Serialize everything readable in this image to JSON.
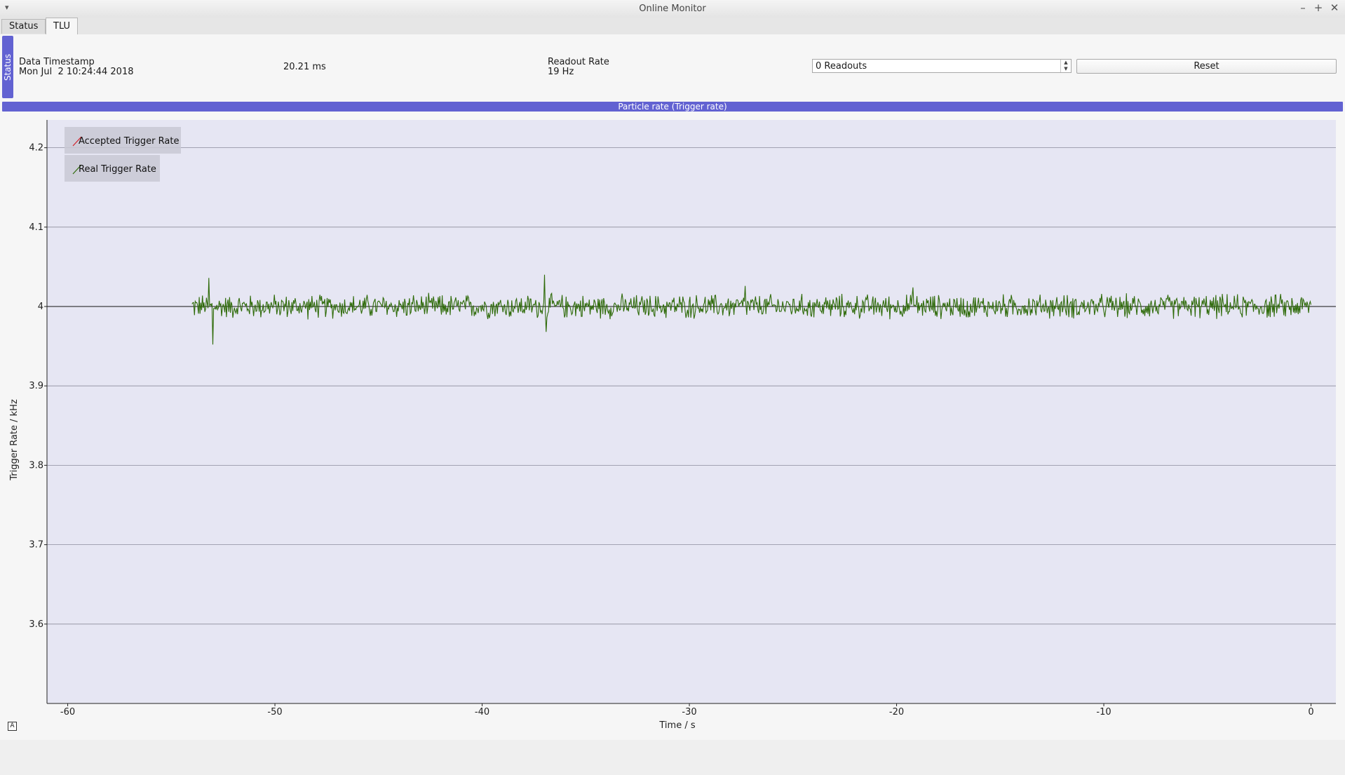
{
  "window": {
    "title": "Online Monitor",
    "menu_icon": "chevron-down-icon",
    "controls": [
      "minimize-icon",
      "maximize-icon",
      "close-icon"
    ],
    "minimize_glyph": "–",
    "maximize_glyph": "+",
    "close_glyph": "✕"
  },
  "tabs": [
    {
      "label": "Status",
      "active": false
    },
    {
      "label": "TLU",
      "active": true
    }
  ],
  "status_dock": {
    "tab_label": "Status",
    "timestamp_label": "Data Timestamp",
    "timestamp_value": "Mon Jul  2 10:24:44 2018",
    "latency": "20.21 ms",
    "readout_rate_label": "Readout Rate",
    "readout_rate_value": "19 Hz",
    "readouts_value": "0 Readouts",
    "reset_label": "Reset"
  },
  "plot_dock": {
    "title": "Particle rate (Trigger rate)"
  },
  "colors": {
    "accent": "#6262d2",
    "plot_bg": "#e6e6f3",
    "real_trigger_line": "#2f6b0a",
    "accepted_trigger_line": "#d2202a"
  },
  "chart_data": {
    "type": "line",
    "xlabel": "Time / s",
    "ylabel": "Trigger Rate / kHz",
    "xlim": [
      -61,
      1.2
    ],
    "ylim": [
      3.5,
      4.235
    ],
    "xticks": [
      -60,
      -50,
      -40,
      -30,
      -20,
      -10,
      0
    ],
    "yticks": [
      3.6,
      3.7,
      3.8,
      3.9,
      4,
      4.1,
      4.2
    ],
    "grid": "horizontal",
    "legend_placement": "top-left",
    "reference_line_y": 4,
    "series": [
      {
        "name": "Accepted Trigger Rate",
        "color": "#d2202a",
        "x": [],
        "y": []
      },
      {
        "name": "Real Trigger Rate",
        "color": "#2f6b0a",
        "x_range": [
          -54,
          0
        ],
        "baseline": 4.0,
        "noise_amplitude": 0.012,
        "spikes": [
          {
            "x": -53.2,
            "y": 4.036
          },
          {
            "x": -53.0,
            "y": 3.952
          },
          {
            "x": -37.0,
            "y": 4.04
          },
          {
            "x": -36.9,
            "y": 3.968
          },
          {
            "x": -27.3,
            "y": 4.026
          },
          {
            "x": -19.2,
            "y": 4.024
          }
        ]
      }
    ]
  }
}
